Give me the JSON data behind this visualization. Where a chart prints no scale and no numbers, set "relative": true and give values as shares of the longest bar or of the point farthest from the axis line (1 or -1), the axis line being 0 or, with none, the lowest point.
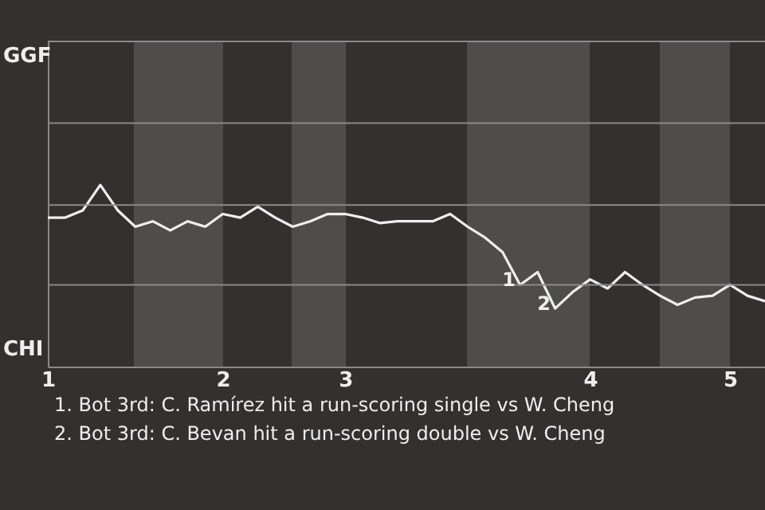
{
  "chart_data": {
    "type": "line",
    "relative": true,
    "categories": [
      "1",
      null,
      null,
      null,
      null,
      null,
      null,
      null,
      null,
      null,
      "2",
      null,
      null,
      null,
      null,
      null,
      null,
      "3",
      null,
      null,
      null,
      null,
      null,
      null,
      null,
      null,
      null,
      null,
      null,
      null,
      null,
      "4",
      null,
      null,
      null,
      null,
      null,
      null,
      null,
      "5",
      null,
      null
    ],
    "series": [
      {
        "color": "#eeeeee",
        "values": [
          0.82,
          0.82,
          0.86,
          1,
          0.86,
          0.77,
          0.8,
          0.75,
          0.8,
          0.77,
          0.84,
          0.82,
          0.88,
          0.82,
          0.77,
          0.8,
          0.84,
          0.84,
          0.82,
          0.79,
          0.8,
          0.8,
          0.8,
          0.84,
          0.77,
          0.71,
          0.63,
          0.45,
          0.52,
          0.32,
          0.41,
          0.48,
          0.43,
          0.52,
          0.45,
          0.39,
          0.34,
          0.38,
          0.39,
          0.45,
          0.39,
          0.36
        ]
      }
    ],
    "ref_lines": [
      {
        "axis": "y",
        "value": 0.45,
        "color": "#8a8a8a"
      },
      {
        "axis": "y",
        "value": 0.89,
        "color": "#8a8a8a"
      },
      {
        "axis": "y",
        "value": 1.34,
        "color": "#8a8a8a"
      },
      {
        "axis": "y",
        "value": 1.79,
        "color": "#8a8a8a"
      }
    ],
    "annotations": [
      "GGF",
      "CHI",
      "1",
      "2",
      "1. Bot 3rd: C. Ramírez hit a run-scoring single vs W. Cheng",
      "2. Bot 3rd: C. Bevan hit a run-scoring double vs W. Cheng"
    ]
  }
}
